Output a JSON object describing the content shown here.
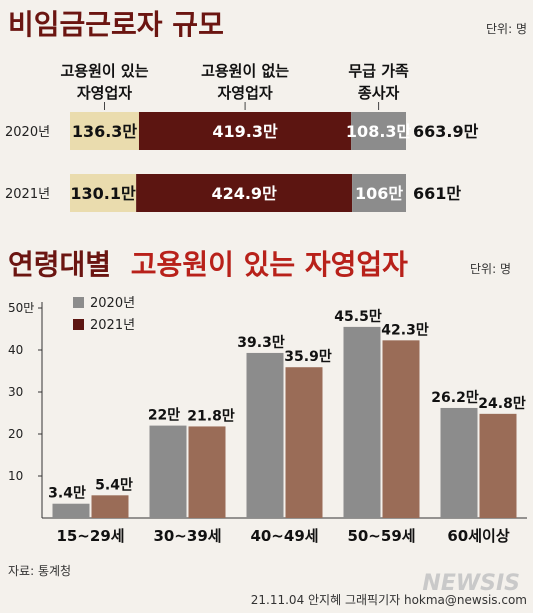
{
  "colors": {
    "title_dark": "#6b1511",
    "title_red": "#b8211a",
    "cream": "#eadcae",
    "maroon": "#5c1511",
    "gray": "#8c8c8c",
    "brown": "#9a6c57"
  },
  "title1": {
    "main": "비임금근로자 규모",
    "unit": "단위: 명"
  },
  "title2": {
    "part1": "연령대별",
    "part2": "고용원이 있는 자영업자",
    "unit": "단위: 명"
  },
  "chart_data": [
    {
      "type": "bar",
      "orientation": "horizontal-stacked",
      "title": "비임금근로자 규모",
      "unit": "단위: 명",
      "categories": [
        [
          "고용원이 있는",
          "자영업자"
        ],
        [
          "고용원이 없는",
          "자영업자"
        ],
        [
          "무급 가족",
          "종사자"
        ]
      ],
      "rows": [
        {
          "year": "2020년",
          "values": [
            136.3,
            419.3,
            108.3
          ],
          "labels": [
            "136.3만",
            "419.3만",
            "108.3만"
          ],
          "total_label": "663.9만"
        },
        {
          "year": "2021년",
          "values": [
            130.1,
            424.9,
            106
          ],
          "labels": [
            "130.1만",
            "424.9만",
            "106만"
          ],
          "total_label": "661만"
        }
      ]
    },
    {
      "type": "bar",
      "title": "연령대별 고용원이 있는 자영업자",
      "unit": "단위: 명",
      "categories": [
        "15~29세",
        "30~39세",
        "40~49세",
        "50~59세",
        "60세이상"
      ],
      "series": [
        {
          "name": "2020년",
          "values": [
            3.4,
            22,
            39.3,
            45.5,
            26.2
          ],
          "labels": [
            "3.4만",
            "22만",
            "39.3만",
            "45.5만",
            "26.2만"
          ]
        },
        {
          "name": "2021년",
          "values": [
            5.4,
            21.8,
            35.9,
            42.3,
            24.8
          ],
          "labels": [
            "5.4만",
            "21.8만",
            "35.9만",
            "42.3만",
            "24.8만"
          ]
        }
      ],
      "ylim": [
        0,
        50
      ],
      "yticks": [
        "10",
        "20",
        "30",
        "40",
        "50만"
      ],
      "legend": "top-left",
      "grid": false
    }
  ],
  "footer": {
    "source": "자료: 통계청",
    "credit": "21.11.04 안지혜 그래픽기자 hokma@newsis.com",
    "brand": "NEWSIS"
  }
}
